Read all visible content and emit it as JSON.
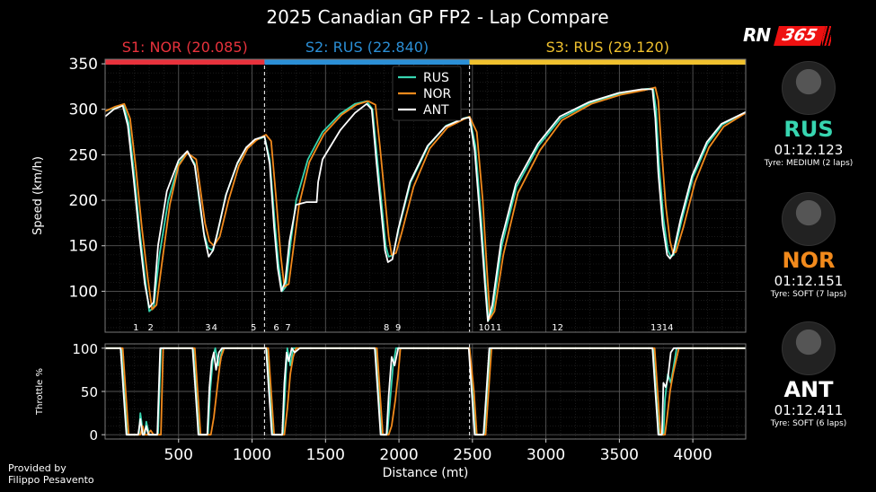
{
  "title": "2025 Canadian GP FP2 - Lap Compare",
  "sectors": [
    {
      "label": "S1: NOR (20.085)",
      "color": "#e8323c",
      "start": 0,
      "end": 1085
    },
    {
      "label": "S2: RUS (22.840)",
      "color": "#2b8fd6",
      "start": 1085,
      "end": 2480
    },
    {
      "label": "S3: RUS (29.120)",
      "color": "#f0c12e",
      "start": 2480,
      "end": 4360
    }
  ],
  "drivers": [
    {
      "code": "RUS",
      "color": "#37d5b0",
      "time": "01:12.123",
      "tyre": "Tyre: MEDIUM (2 laps)"
    },
    {
      "code": "NOR",
      "color": "#f28a1c",
      "time": "01:12.151",
      "tyre": "Tyre: SOFT (7 laps)"
    },
    {
      "code": "ANT",
      "color": "#ffffff",
      "time": "01:12.411",
      "tyre": "Tyre: SOFT (6 laps)"
    }
  ],
  "credit": [
    "Provided by",
    "Filippo Pesavento"
  ],
  "logo": {
    "text_left": "RN",
    "text_right": "365"
  },
  "corners": [
    {
      "label": "1",
      "x": 210
    },
    {
      "label": "2",
      "x": 310
    },
    {
      "label": "3",
      "x": 700
    },
    {
      "label": "4",
      "x": 745
    },
    {
      "label": "5",
      "x": 1010
    },
    {
      "label": "6",
      "x": 1165
    },
    {
      "label": "7",
      "x": 1245
    },
    {
      "label": "8",
      "x": 1915
    },
    {
      "label": "9",
      "x": 1995
    },
    {
      "label": "10",
      "x": 2580
    },
    {
      "label": "11",
      "x": 2660
    },
    {
      "label": "12",
      "x": 3080
    },
    {
      "label": "1314",
      "x": 3790
    }
  ],
  "chart_data": {
    "type": "line",
    "xlabel": "Distance (mt)",
    "xlim": [
      0,
      4360
    ],
    "xticks": [
      500,
      1000,
      1500,
      2000,
      2500,
      3000,
      3500,
      4000
    ],
    "grid": true,
    "legend_position": "top-center",
    "sector_dividers": [
      1085,
      2480
    ],
    "panels": [
      {
        "name": "speed",
        "ylabel": "Speed (km/h)",
        "ylim": [
          55,
          355
        ],
        "yticks": [
          100,
          150,
          200,
          250,
          300,
          350
        ],
        "series": [
          {
            "name": "RUS",
            "x": [
              0,
              70,
              125,
              160,
              200,
              240,
              275,
              300,
              330,
              370,
              430,
              500,
              560,
              610,
              640,
              670,
              700,
              730,
              760,
              820,
              900,
              960,
              1020,
              1060,
              1085,
              1120,
              1155,
              1180,
              1205,
              1230,
              1260,
              1300,
              1380,
              1480,
              1600,
              1700,
              1780,
              1820,
              1850,
              1880,
              1910,
              1930,
              1960,
              2000,
              2080,
              2200,
              2320,
              2440,
              2480,
              2520,
              2560,
              2590,
              2610,
              2640,
              2700,
              2800,
              2950,
              3100,
              3300,
              3500,
              3660,
              3730,
              3750,
              3770,
              3800,
              3830,
              3850,
              3870,
              3920,
              4000,
              4100,
              4200,
              4360
            ],
            "y": [
              298,
              302,
              305,
              285,
              225,
              160,
              110,
              78,
              82,
              140,
              200,
              240,
              253,
              240,
              200,
              165,
              148,
              145,
              160,
              205,
              240,
              258,
              266,
              268,
              270,
              245,
              175,
              130,
              100,
              105,
              150,
              200,
              245,
              275,
              295,
              306,
              309,
              300,
              250,
              200,
              150,
              138,
              140,
              170,
              220,
              260,
              282,
              290,
              292,
              260,
              180,
              110,
              68,
              80,
              150,
              215,
              260,
              290,
              307,
              317,
              322,
              323,
              300,
              240,
              180,
              145,
              138,
              140,
              175,
              225,
              262,
              283,
              297
            ]
          },
          {
            "name": "NOR",
            "x": [
              0,
              70,
              130,
              170,
              210,
              250,
              290,
              320,
              350,
              390,
              440,
              500,
              560,
              620,
              650,
              680,
              710,
              740,
              780,
              840,
              910,
              970,
              1030,
              1070,
              1095,
              1130,
              1165,
              1195,
              1220,
              1250,
              1280,
              1320,
              1390,
              1490,
              1610,
              1710,
              1790,
              1840,
              1870,
              1900,
              1930,
              1950,
              1980,
              2020,
              2100,
              2210,
              2330,
              2440,
              2480,
              2530,
              2570,
              2600,
              2620,
              2650,
              2710,
              2810,
              2960,
              3110,
              3310,
              3510,
              3670,
              3745,
              3765,
              3785,
              3815,
              3845,
              3865,
              3885,
              3935,
              4015,
              4110,
              4210,
              4360
            ],
            "y": [
              298,
              303,
              306,
              290,
              235,
              170,
              115,
              80,
              85,
              135,
              195,
              238,
              252,
              245,
              210,
              175,
              155,
              150,
              160,
              200,
              238,
              257,
              266,
              270,
              272,
              265,
              200,
              140,
              105,
              108,
              145,
              195,
              242,
              273,
              294,
              305,
              309,
              305,
              260,
              210,
              160,
              140,
              142,
              165,
              215,
              257,
              280,
              289,
              292,
              275,
              200,
              120,
              70,
              78,
              140,
              208,
              255,
              288,
              306,
              316,
              321,
              324,
              310,
              260,
              195,
              155,
              142,
              143,
              170,
              220,
              258,
              281,
              296
            ]
          },
          {
            "name": "ANT",
            "x": [
              0,
              60,
              120,
              155,
              195,
              235,
              270,
              300,
              330,
              360,
              420,
              500,
              560,
              610,
              645,
              675,
              705,
              735,
              765,
              825,
              900,
              960,
              1020,
              1060,
              1085,
              1120,
              1150,
              1175,
              1200,
              1225,
              1255,
              1300,
              1370,
              1440,
              1450,
              1480,
              1600,
              1700,
              1780,
              1815,
              1845,
              1875,
              1905,
              1925,
              1955,
              1995,
              2075,
              2195,
              2315,
              2440,
              2480,
              2515,
              2555,
              2585,
              2605,
              2635,
              2695,
              2795,
              2945,
              3095,
              3295,
              3495,
              3655,
              3725,
              3745,
              3765,
              3795,
              3825,
              3845,
              3865,
              3915,
              3995,
              4095,
              4195,
              4360
            ],
            "y": [
              292,
              300,
              304,
              282,
              222,
              158,
              108,
              82,
              88,
              150,
              210,
              244,
              254,
              238,
              198,
              160,
              138,
              145,
              165,
              207,
              241,
              258,
              267,
              269,
              270,
              240,
              170,
              125,
              100,
              110,
              155,
              195,
              198,
              198,
              220,
              245,
              277,
              296,
              306,
              300,
              245,
              195,
              145,
              132,
              135,
              168,
              220,
              260,
              281,
              290,
              291,
              255,
              175,
              108,
              67,
              85,
              155,
              218,
              262,
              292,
              308,
              318,
              322,
              322,
              290,
              230,
              172,
              140,
              136,
              141,
              178,
              227,
              264,
              284,
              297
            ]
          }
        ]
      },
      {
        "name": "throttle",
        "ylabel": "Throttle %",
        "ylim": [
          -5,
          105
        ],
        "yticks": [
          0,
          50,
          100
        ],
        "series": [
          {
            "name": "RUS",
            "x": [
              0,
              110,
              130,
              150,
              170,
              230,
              240,
              260,
              270,
              280,
              300,
              360,
              380,
              600,
              620,
              640,
              700,
              715,
              735,
              750,
              770,
              800,
              1100,
              1120,
              1140,
              1210,
              1225,
              1240,
              1260,
              1280,
              1310,
              1330,
              1840,
              1860,
              1880,
              1920,
              1935,
              1960,
              1980,
              2000,
              2480,
              2500,
              2520,
              2580,
              2600,
              2620,
              3730,
              3750,
              3770,
              3800,
              3810,
              3830,
              3850,
              3870,
              3890,
              4360
            ],
            "y": [
              100,
              100,
              50,
              0,
              0,
              0,
              25,
              0,
              0,
              15,
              0,
              0,
              100,
              100,
              50,
              0,
              0,
              50,
              90,
              100,
              80,
              100,
              100,
              50,
              0,
              0,
              50,
              100,
              80,
              100,
              100,
              100,
              100,
              50,
              0,
              0,
              30,
              80,
              100,
              100,
              100,
              50,
              0,
              0,
              50,
              100,
              100,
              50,
              0,
              0,
              40,
              70,
              60,
              80,
              100,
              100
            ]
          },
          {
            "name": "NOR",
            "x": [
              0,
              120,
              140,
              160,
              180,
              240,
              255,
              270,
              290,
              310,
              330,
              380,
              395,
              610,
              630,
              650,
              720,
              740,
              760,
              780,
              790,
              810,
              1110,
              1130,
              1150,
              1220,
              1240,
              1260,
              1280,
              1300,
              1320,
              1340,
              1850,
              1870,
              1890,
              1930,
              1950,
              1975,
              1995,
              2010,
              2480,
              2510,
              2530,
              2590,
              2610,
              2630,
              3740,
              3760,
              3780,
              3810,
              3825,
              3845,
              3865,
              3885,
              3905,
              4360
            ],
            "y": [
              100,
              100,
              50,
              0,
              0,
              0,
              10,
              0,
              0,
              5,
              0,
              0,
              100,
              100,
              50,
              0,
              0,
              20,
              50,
              80,
              90,
              100,
              100,
              50,
              0,
              0,
              30,
              70,
              90,
              100,
              100,
              100,
              100,
              50,
              0,
              0,
              10,
              40,
              70,
              100,
              100,
              50,
              0,
              0,
              50,
              100,
              100,
              50,
              0,
              0,
              20,
              50,
              70,
              85,
              100,
              100
            ]
          },
          {
            "name": "ANT",
            "x": [
              0,
              105,
              125,
              145,
              165,
              225,
              240,
              255,
              265,
              280,
              295,
              355,
              375,
              595,
              615,
              635,
              695,
              710,
              725,
              740,
              755,
              775,
              795,
              1095,
              1115,
              1135,
              1205,
              1220,
              1235,
              1250,
              1270,
              1290,
              1325,
              1835,
              1855,
              1875,
              1915,
              1930,
              1950,
              1970,
              1995,
              2475,
              2495,
              2515,
              2575,
              2595,
              2615,
              3725,
              3745,
              3765,
              3790,
              3800,
              3815,
              3830,
              3850,
              3870,
              4360
            ],
            "y": [
              100,
              100,
              50,
              0,
              0,
              0,
              18,
              0,
              0,
              10,
              0,
              0,
              100,
              100,
              50,
              0,
              0,
              55,
              85,
              95,
              75,
              95,
              100,
              100,
              50,
              0,
              0,
              60,
              95,
              85,
              100,
              95,
              100,
              100,
              50,
              0,
              0,
              45,
              90,
              80,
              100,
              100,
              50,
              0,
              0,
              50,
              100,
              100,
              50,
              0,
              0,
              60,
              55,
              65,
              95,
              100,
              100
            ]
          }
        ]
      }
    ]
  }
}
